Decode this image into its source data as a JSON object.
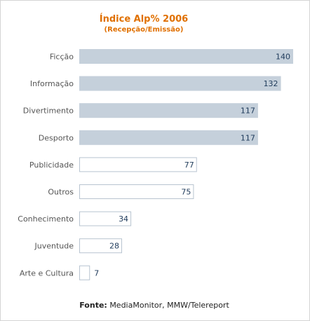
{
  "chart_data": {
    "type": "bar",
    "orientation": "horizontal",
    "title": "Índice Alp% 2006",
    "subtitle": "(Recepção/Emissão)",
    "categories": [
      "Ficção",
      "Informação",
      "Divertimento",
      "Desporto",
      "Publicidade",
      "Outros",
      "Conhecimento",
      "Juventude",
      "Arte e Cultura"
    ],
    "values": [
      140,
      132,
      117,
      117,
      77,
      75,
      34,
      28,
      7
    ],
    "xlim": [
      0,
      140
    ],
    "grid": false,
    "colors": {
      "above_100": "#c5d0db",
      "below_100": "#ffffff",
      "outline": "#b8c4d0"
    }
  },
  "source": {
    "label": "Fonte:",
    "text": "MediaMonitor, MMW/Telereport"
  }
}
